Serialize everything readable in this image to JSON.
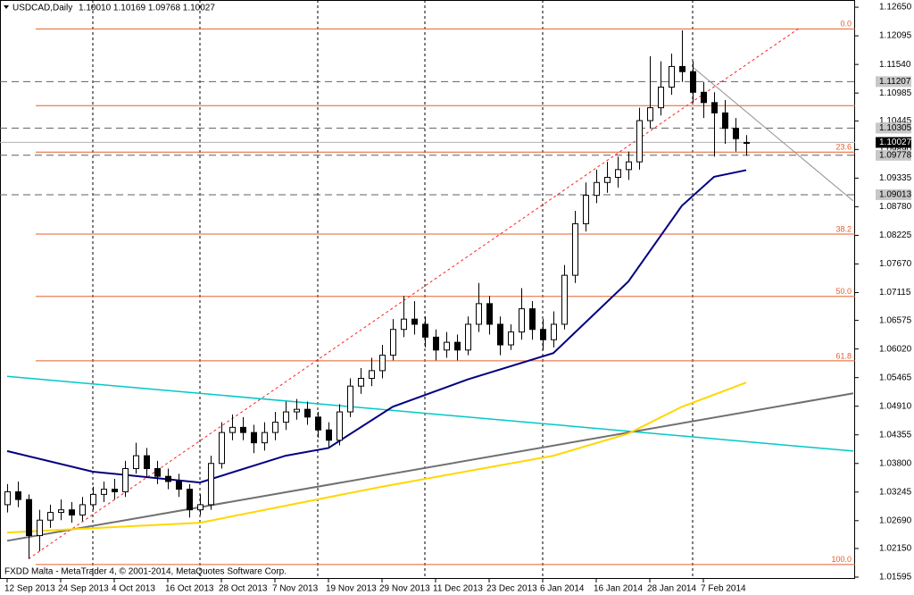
{
  "chart_data": {
    "type": "candlestick",
    "title": "USDCAD,Daily",
    "ohlc_text": "1.10010 1.10169 1.09768 1.10027",
    "footer": "FXDD Malta - MetaTrader 4, © 2001-2014, MetaQuotes Software Corp.",
    "date_labels": [
      "12 Sep 2013",
      "24 Sep 2013",
      "4 Oct 2013",
      "16 Oct 2013",
      "28 Oct 2013",
      "7 Nov 2013",
      "19 Nov 2013",
      "29 Nov 2013",
      "11 Dec 2013",
      "23 Dec 2013",
      "6 Jan 2014",
      "16 Jan 2014",
      "28 Jan 2014",
      "7 Feb 2014"
    ],
    "ylim": [
      1.0156,
      1.1279
    ],
    "yticks": [
      {
        "value": 1.1265,
        "label": "1.12650"
      },
      {
        "value": 1.12095,
        "label": "1.12095"
      },
      {
        "value": 1.1154,
        "label": "1.11540"
      },
      {
        "value": 1.10985,
        "label": "1.10985"
      },
      {
        "value": 1.10445,
        "label": "1.10445"
      },
      {
        "value": 1.0989,
        "label": "1.09890"
      },
      {
        "value": 1.09335,
        "label": "1.09335"
      },
      {
        "value": 1.0878,
        "label": "1.08780"
      },
      {
        "value": 1.08225,
        "label": "1.08225"
      },
      {
        "value": 1.0767,
        "label": "1.07670"
      },
      {
        "value": 1.07115,
        "label": "1.07115"
      },
      {
        "value": 1.06575,
        "label": "1.06575"
      },
      {
        "value": 1.0602,
        "label": "1.06020"
      },
      {
        "value": 1.05465,
        "label": "1.05465"
      },
      {
        "value": 1.0491,
        "label": "1.04910"
      },
      {
        "value": 1.04355,
        "label": "1.04355"
      },
      {
        "value": 1.038,
        "label": "1.03800"
      },
      {
        "value": 1.03245,
        "label": "1.03245"
      },
      {
        "value": 1.0269,
        "label": "1.02690"
      },
      {
        "value": 1.0215,
        "label": "1.02150"
      },
      {
        "value": 1.01595,
        "label": "1.01595"
      }
    ],
    "up_color": "#ffffff",
    "down_color": "#000000",
    "candles": [
      [
        1.03,
        1.034,
        1.0285,
        1.0325
      ],
      [
        1.0325,
        1.0345,
        1.0295,
        1.031
      ],
      [
        1.031,
        1.032,
        1.0195,
        1.024
      ],
      [
        1.024,
        1.029,
        1.021,
        1.027
      ],
      [
        1.027,
        1.03,
        1.0255,
        1.0285
      ],
      [
        1.0285,
        1.031,
        1.027,
        1.029
      ],
      [
        1.029,
        1.0305,
        1.0265,
        1.028
      ],
      [
        1.028,
        1.0315,
        1.0268,
        1.03
      ],
      [
        1.03,
        1.0335,
        1.029,
        1.032
      ],
      [
        1.032,
        1.0345,
        1.0305,
        1.033
      ],
      [
        1.033,
        1.035,
        1.031,
        1.0325
      ],
      [
        1.0325,
        1.0385,
        1.0315,
        1.037
      ],
      [
        1.037,
        1.042,
        1.036,
        1.0395
      ],
      [
        1.0395,
        1.041,
        1.0355,
        1.037
      ],
      [
        1.037,
        1.0385,
        1.034,
        1.0355
      ],
      [
        1.0355,
        1.037,
        1.033,
        1.0345
      ],
      [
        1.0345,
        1.036,
        1.0315,
        1.033
      ],
      [
        1.033,
        1.034,
        1.0275,
        1.029
      ],
      [
        1.029,
        1.032,
        1.028,
        1.03
      ],
      [
        1.03,
        1.0395,
        1.029,
        1.038
      ],
      [
        1.038,
        1.046,
        1.037,
        1.044
      ],
      [
        1.044,
        1.0475,
        1.0425,
        1.045
      ],
      [
        1.045,
        1.047,
        1.0425,
        1.044
      ],
      [
        1.044,
        1.0455,
        1.04,
        1.042
      ],
      [
        1.042,
        1.046,
        1.0405,
        1.044
      ],
      [
        1.044,
        1.048,
        1.0425,
        1.046
      ],
      [
        1.046,
        1.05,
        1.0445,
        1.048
      ],
      [
        1.048,
        1.0505,
        1.0465,
        1.0485
      ],
      [
        1.0485,
        1.05,
        1.0455,
        1.047
      ],
      [
        1.047,
        1.048,
        1.043,
        1.0445
      ],
      [
        1.0445,
        1.046,
        1.041,
        1.0425
      ],
      [
        1.0425,
        1.0495,
        1.0415,
        1.048
      ],
      [
        1.048,
        1.0545,
        1.047,
        1.053
      ],
      [
        1.053,
        1.0565,
        1.0515,
        1.0545
      ],
      [
        1.0545,
        1.0585,
        1.053,
        1.056
      ],
      [
        1.056,
        1.061,
        1.0545,
        1.059
      ],
      [
        1.059,
        1.066,
        1.058,
        1.064
      ],
      [
        1.064,
        1.0705,
        1.0625,
        1.066
      ],
      [
        1.066,
        1.0695,
        1.063,
        1.065
      ],
      [
        1.065,
        1.0665,
        1.0605,
        1.0625
      ],
      [
        1.0625,
        1.064,
        1.058,
        1.06
      ],
      [
        1.06,
        1.0635,
        1.0585,
        1.0615
      ],
      [
        1.0615,
        1.063,
        1.058,
        1.06
      ],
      [
        1.06,
        1.0665,
        1.059,
        1.065
      ],
      [
        1.065,
        1.073,
        1.0635,
        1.069
      ],
      [
        1.069,
        1.0705,
        1.063,
        1.065
      ],
      [
        1.065,
        1.0665,
        1.059,
        1.061
      ],
      [
        1.061,
        1.065,
        1.06,
        1.0635
      ],
      [
        1.0635,
        1.072,
        1.062,
        1.068
      ],
      [
        1.068,
        1.0695,
        1.062,
        1.064
      ],
      [
        1.064,
        1.066,
        1.06,
        1.062
      ],
      [
        1.062,
        1.0675,
        1.0605,
        1.065
      ],
      [
        1.065,
        1.0765,
        1.064,
        1.0745
      ],
      [
        1.0745,
        1.087,
        1.073,
        1.0845
      ],
      [
        1.0845,
        1.0925,
        1.083,
        1.09
      ],
      [
        1.09,
        1.095,
        1.0885,
        1.0925
      ],
      [
        1.0925,
        1.0965,
        1.0905,
        1.0935
      ],
      [
        1.0935,
        1.0975,
        1.0915,
        1.095
      ],
      [
        1.095,
        1.0985,
        1.093,
        1.0965
      ],
      [
        1.0965,
        1.107,
        1.095,
        1.1045
      ],
      [
        1.1045,
        1.117,
        1.103,
        1.107
      ],
      [
        1.107,
        1.116,
        1.1055,
        1.111
      ],
      [
        1.111,
        1.1175,
        1.1095,
        1.115
      ],
      [
        1.115,
        1.122,
        1.112,
        1.114
      ],
      [
        1.114,
        1.116,
        1.108,
        1.11
      ],
      [
        1.11,
        1.112,
        1.105,
        1.108
      ],
      [
        1.108,
        1.11,
        1.0975,
        1.106
      ],
      [
        1.106,
        1.1085,
        1.1,
        1.103
      ],
      [
        1.103,
        1.105,
        1.0985,
        1.101
      ],
      [
        1.1001,
        1.10169,
        1.09768,
        1.10027
      ]
    ],
    "overlays": [
      {
        "color": "#00c8c8",
        "width": 1.5,
        "dash": false,
        "points": [
          [
            0,
            1.0549
          ],
          [
            79,
            1.0404
          ]
        ]
      },
      {
        "color": "#707070",
        "width": 2,
        "dash": false,
        "points": [
          [
            0,
            1.023
          ],
          [
            79,
            1.0516
          ]
        ]
      },
      {
        "color": "#ff2020",
        "width": 1,
        "dash": true,
        "points": [
          [
            2,
            1.0195
          ],
          [
            74,
            1.1225
          ]
        ]
      },
      {
        "color": "#909090",
        "width": 1,
        "dash": false,
        "points": [
          [
            64,
            1.1149
          ],
          [
            79,
            1.0889
          ]
        ]
      },
      {
        "color": "#ffd700",
        "width": 2,
        "dash": false,
        "points": [
          [
            0,
            1.0246
          ],
          [
            18,
            1.0265
          ],
          [
            35,
            1.0335
          ],
          [
            51,
            1.0395
          ],
          [
            58,
            1.0438
          ],
          [
            63,
            1.049
          ],
          [
            69,
            1.0537
          ]
        ]
      },
      {
        "color": "#000080",
        "width": 2,
        "dash": false,
        "points": [
          [
            0,
            1.0404
          ],
          [
            8,
            1.0364
          ],
          [
            18,
            1.0343
          ],
          [
            26,
            1.0395
          ],
          [
            30,
            1.041
          ],
          [
            36,
            1.049
          ],
          [
            43,
            1.0543
          ],
          [
            51,
            1.0594
          ],
          [
            58,
            1.0733
          ],
          [
            63,
            1.088
          ],
          [
            66,
            1.0936
          ],
          [
            69,
            1.0949
          ]
        ]
      }
    ],
    "fib_color": "#e4602c",
    "fib_levels": [
      {
        "label": "0.0",
        "price": 1.1223
      },
      {
        "label": null,
        "price": 1.1074
      },
      {
        "label": "23.6",
        "price": 1.0984
      },
      {
        "label": "38.2",
        "price": 1.0825
      },
      {
        "label": "50.0",
        "price": 1.0704
      },
      {
        "label": "61.8",
        "price": 1.0579
      },
      {
        "label": "100.0",
        "price": 1.0184
      }
    ],
    "price_lines": [
      1.11207,
      1.10305,
      1.09778,
      1.09013
    ],
    "current_price": 1.10027
  }
}
